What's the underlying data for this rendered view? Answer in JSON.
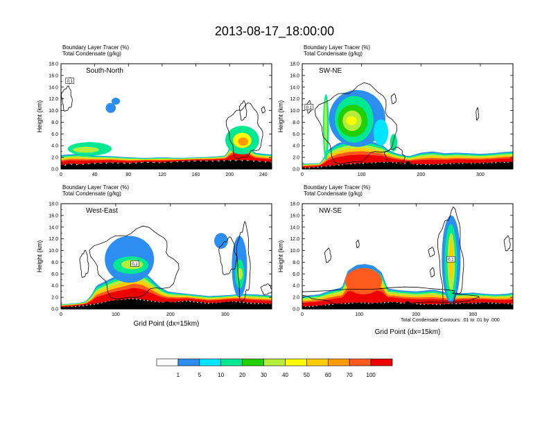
{
  "main_title": "2013-08-17_18:00:00",
  "colorbar": {
    "labels": [
      "1",
      "5",
      "10",
      "20",
      "30",
      "40",
      "50",
      "60",
      "70",
      "100"
    ],
    "colors": [
      "#ffffff",
      "#2b8ef0",
      "#00e5ff",
      "#00e892",
      "#22d000",
      "#b4ee3a",
      "#ffff00",
      "#ffcc00",
      "#ff9a00",
      "#ff5a1e",
      "#ee0000"
    ]
  },
  "footnote": "Total Condensate Contours: .01 to .01 by .000",
  "chart_data": [
    {
      "type": "heatmap",
      "panel_label": "South-North",
      "title_line1": "Boundary Layer Tracer    (%)",
      "title_line2": "Total Condensate    (g/kg)",
      "xlabel": "",
      "ylabel": "Height (km)",
      "xlim": [
        0,
        250
      ],
      "ylim": [
        0,
        18
      ],
      "xticks": [
        "0",
        "40",
        "80",
        "120",
        "160",
        "200",
        "240"
      ],
      "yticks": [
        "0.0",
        "2.0",
        "4.0",
        "6.0",
        "8.0",
        "10.0",
        "12.0",
        "14.0",
        "16.0",
        "18.0"
      ],
      "marker_x": 127,
      "box_label": "0.1",
      "ground": [
        [
          0,
          0.6
        ],
        [
          10,
          0.9
        ],
        [
          20,
          0.8
        ],
        [
          40,
          1.0
        ],
        [
          60,
          1.1
        ],
        [
          80,
          1.0
        ],
        [
          100,
          1.2
        ],
        [
          120,
          1.1
        ],
        [
          140,
          1.3
        ],
        [
          160,
          1.4
        ],
        [
          180,
          1.4
        ],
        [
          200,
          1.5
        ],
        [
          220,
          1.5
        ],
        [
          240,
          1.3
        ],
        [
          250,
          1.2
        ]
      ],
      "tracer_top": [
        [
          0,
          2.4
        ],
        [
          20,
          2.6
        ],
        [
          40,
          2.3
        ],
        [
          60,
          2.2
        ],
        [
          80,
          2.0
        ],
        [
          100,
          1.9
        ],
        [
          120,
          2.0
        ],
        [
          140,
          1.9
        ],
        [
          160,
          2.0
        ],
        [
          180,
          2.1
        ],
        [
          195,
          2.3
        ],
        [
          200,
          3.6
        ],
        [
          205,
          4.5
        ],
        [
          210,
          5.4
        ],
        [
          215,
          5.8
        ],
        [
          220,
          4.9
        ],
        [
          225,
          3.6
        ],
        [
          230,
          2.8
        ],
        [
          240,
          2.6
        ],
        [
          250,
          2.5
        ]
      ],
      "blobs": [
        {
          "x": [
            8,
            60
          ],
          "z": [
            2.3,
            4.6
          ],
          "level": 3
        },
        {
          "x": [
            14,
            45
          ],
          "z": [
            2.8,
            3.8
          ],
          "level": 5
        },
        {
          "x": [
            195,
            235
          ],
          "z": [
            2.5,
            7.4
          ],
          "level": 3
        },
        {
          "x": [
            204,
            226
          ],
          "z": [
            3.6,
            6.2
          ],
          "level": 6
        },
        {
          "x": [
            210,
            222
          ],
          "z": [
            4.0,
            5.4
          ],
          "level": 8
        },
        {
          "x": [
            53,
            65
          ],
          "z": [
            9.6,
            11.3
          ],
          "level": 1
        },
        {
          "x": [
            60,
            70
          ],
          "z": [
            11.0,
            12.2
          ],
          "level": 1
        }
      ],
      "contours": [
        {
          "x": [
            1,
            13
          ],
          "z": [
            10.0,
            14.0
          ]
        },
        {
          "x": [
            9,
            12
          ],
          "z": [
            14.6,
            15.6
          ]
        },
        {
          "x": [
            198,
            238
          ],
          "z": [
            2.0,
            10.8
          ]
        },
        {
          "x": [
            212,
            220
          ],
          "z": [
            8.4,
            11.5
          ]
        },
        {
          "x": [
            238,
            242
          ],
          "z": [
            9.6,
            10.6
          ]
        }
      ]
    },
    {
      "type": "heatmap",
      "panel_label": "SW-NE",
      "title_line1": "Boundary Layer Tracer    (%)",
      "title_line2": "Total Condensate    (g/kg)",
      "xlabel": "",
      "ylabel": "Height (km)",
      "xlim": [
        0,
        355
      ],
      "ylim": [
        0,
        18
      ],
      "xticks": [
        "0",
        "100",
        "200",
        "300"
      ],
      "yticks": [
        "0.0",
        "2.0",
        "4.0",
        "6.0",
        "8.0",
        "10.0",
        "12.0",
        "14.0",
        "16.0",
        "18.0"
      ],
      "marker_x": 178,
      "box_label": "0.1",
      "ground": [
        [
          0,
          0.2
        ],
        [
          20,
          0.3
        ],
        [
          40,
          0.5
        ],
        [
          60,
          0.7
        ],
        [
          80,
          0.9
        ],
        [
          100,
          1.0
        ],
        [
          120,
          1.1
        ],
        [
          140,
          1.2
        ],
        [
          160,
          1.1
        ],
        [
          180,
          0.9
        ],
        [
          200,
          0.8
        ],
        [
          220,
          0.8
        ],
        [
          240,
          0.9
        ],
        [
          260,
          1.0
        ],
        [
          280,
          1.0
        ],
        [
          300,
          1.0
        ],
        [
          320,
          1.1
        ],
        [
          340,
          1.2
        ],
        [
          355,
          1.2
        ]
      ],
      "tracer_top": [
        [
          0,
          0.9
        ],
        [
          30,
          1.0
        ],
        [
          38,
          2.2
        ],
        [
          45,
          3.4
        ],
        [
          60,
          4.4
        ],
        [
          80,
          5.0
        ],
        [
          100,
          5.1
        ],
        [
          120,
          4.6
        ],
        [
          135,
          4.1
        ],
        [
          145,
          3.3
        ],
        [
          155,
          2.8
        ],
        [
          165,
          2.5
        ],
        [
          180,
          2.2
        ],
        [
          200,
          2.8
        ],
        [
          220,
          3.0
        ],
        [
          240,
          2.7
        ],
        [
          260,
          2.8
        ],
        [
          280,
          2.7
        ],
        [
          300,
          2.6
        ],
        [
          320,
          2.7
        ],
        [
          340,
          2.9
        ],
        [
          355,
          3.0
        ]
      ],
      "blobs": [
        {
          "x": [
            35,
            45
          ],
          "z": [
            1.5,
            12.8
          ],
          "level": 3
        },
        {
          "x": [
            37,
            42
          ],
          "z": [
            3.0,
            12.0
          ],
          "level": 5
        },
        {
          "x": [
            45,
            140
          ],
          "z": [
            3.8,
            13.5
          ],
          "level": 1
        },
        {
          "x": [
            55,
            120
          ],
          "z": [
            4.5,
            12.5
          ],
          "level": 3
        },
        {
          "x": [
            60,
            110
          ],
          "z": [
            5.5,
            11.0
          ],
          "level": 4
        },
        {
          "x": [
            68,
            100
          ],
          "z": [
            6.5,
            10.0
          ],
          "level": 5
        },
        {
          "x": [
            74,
            92
          ],
          "z": [
            7.5,
            9.0
          ],
          "level": 6
        },
        {
          "x": [
            120,
            145
          ],
          "z": [
            4.0,
            8.5
          ],
          "level": 2
        },
        {
          "x": [
            148,
            160
          ],
          "z": [
            3.0,
            6.0
          ],
          "level": 3
        }
      ],
      "contours": [
        {
          "x": [
            28,
            155
          ],
          "z": [
            1.2,
            14.0
          ]
        },
        {
          "x": [
            8,
            15
          ],
          "z": [
            9.6,
            11.6
          ]
        },
        {
          "x": [
            150,
            158
          ],
          "z": [
            11.2,
            12.8
          ]
        },
        {
          "x": [
            293,
            297
          ],
          "z": [
            8.4,
            10.4
          ]
        },
        {
          "x": [
            140,
            172
          ],
          "z": [
            0.8,
            3.6
          ]
        }
      ]
    },
    {
      "type": "heatmap",
      "panel_label": "West-East",
      "title_line1": "Boundary Layer Tracer    (%)",
      "title_line2": "Total Condensate    (g/kg)",
      "xlabel": "Grid Point (dx=15km)",
      "ylabel": "Height (km)",
      "xlim": [
        0,
        385
      ],
      "ylim": [
        0,
        18
      ],
      "xticks": [
        "0",
        "100",
        "200",
        "300"
      ],
      "yticks": [
        "0.0",
        "2.0",
        "4.0",
        "6.0",
        "8.0",
        "10.0",
        "12.0",
        "14.0",
        "16.0",
        "18.0"
      ],
      "marker_x": 193,
      "box_label": "0.1",
      "ground": [
        [
          0,
          0.3
        ],
        [
          30,
          0.5
        ],
        [
          50,
          0.7
        ],
        [
          70,
          1.0
        ],
        [
          90,
          1.4
        ],
        [
          110,
          1.6
        ],
        [
          130,
          1.8
        ],
        [
          150,
          1.6
        ],
        [
          170,
          1.3
        ],
        [
          190,
          1.1
        ],
        [
          210,
          1.2
        ],
        [
          230,
          1.4
        ],
        [
          250,
          1.2
        ],
        [
          270,
          1.0
        ],
        [
          290,
          1.1
        ],
        [
          310,
          1.3
        ],
        [
          330,
          1.2
        ],
        [
          350,
          1.0
        ],
        [
          385,
          0.9
        ]
      ],
      "tracer_top": [
        [
          0,
          0.8
        ],
        [
          30,
          1.0
        ],
        [
          45,
          1.3
        ],
        [
          55,
          2.3
        ],
        [
          65,
          4.0
        ],
        [
          80,
          4.7
        ],
        [
          100,
          5.6
        ],
        [
          120,
          6.3
        ],
        [
          135,
          6.9
        ],
        [
          150,
          6.5
        ],
        [
          165,
          5.2
        ],
        [
          180,
          3.8
        ],
        [
          195,
          3.0
        ],
        [
          210,
          2.8
        ],
        [
          230,
          2.6
        ],
        [
          250,
          2.4
        ],
        [
          270,
          2.2
        ],
        [
          290,
          2.3
        ],
        [
          310,
          2.4
        ],
        [
          330,
          2.6
        ],
        [
          350,
          2.5
        ],
        [
          370,
          2.4
        ],
        [
          385,
          2.3
        ]
      ],
      "blobs": [
        {
          "x": [
            80,
            170
          ],
          "z": [
            4.5,
            12.5
          ],
          "level": 1
        },
        {
          "x": [
            95,
            160
          ],
          "z": [
            6.0,
            9.0
          ],
          "level": 3
        },
        {
          "x": [
            110,
            150
          ],
          "z": [
            6.8,
            8.4
          ],
          "level": 5
        },
        {
          "x": [
            280,
            305
          ],
          "z": [
            10.3,
            13.0
          ],
          "level": 1
        },
        {
          "x": [
            312,
            340
          ],
          "z": [
            2.0,
            12.5
          ],
          "level": 1
        },
        {
          "x": [
            318,
            335
          ],
          "z": [
            3.5,
            8.5
          ],
          "level": 3
        },
        {
          "x": [
            322,
            332
          ],
          "z": [
            5.0,
            7.0
          ],
          "level": 5
        }
      ],
      "contours": [
        {
          "x": [
            35,
            50
          ],
          "z": [
            5.5,
            9.8
          ]
        },
        {
          "x": [
            60,
            210
          ],
          "z": [
            2.0,
            13.5
          ]
        },
        {
          "x": [
            290,
            320
          ],
          "z": [
            6.0,
            12.0
          ]
        },
        {
          "x": [
            322,
            345
          ],
          "z": [
            1.5,
            14.2
          ]
        },
        {
          "x": [
            366,
            385
          ],
          "z": [
            2.5,
            4.2
          ]
        }
      ]
    },
    {
      "type": "heatmap",
      "panel_label": "NW-SE",
      "title_line1": "Boundary Layer Tracer    (%)",
      "title_line2": "Total Condensate    (g/kg)",
      "xlabel": "Grid Point (dx=15km)",
      "ylabel": "Height (km)",
      "xlim": [
        0,
        370
      ],
      "ylim": [
        0,
        18
      ],
      "xticks": [
        "0",
        "100",
        "200",
        "300"
      ],
      "yticks": [
        "0.0",
        "2.0",
        "4.0",
        "6.0",
        "8.0",
        "10.0",
        "12.0",
        "14.0",
        "16.0",
        "18.0"
      ],
      "marker_x": 185,
      "box_label": "0.1",
      "ground": [
        [
          0,
          0.4
        ],
        [
          20,
          0.5
        ],
        [
          40,
          0.7
        ],
        [
          60,
          0.9
        ],
        [
          80,
          1.0
        ],
        [
          100,
          1.1
        ],
        [
          120,
          1.0
        ],
        [
          140,
          1.1
        ],
        [
          160,
          1.2
        ],
        [
          180,
          1.0
        ],
        [
          200,
          0.9
        ],
        [
          220,
          0.8
        ],
        [
          240,
          0.8
        ],
        [
          260,
          0.9
        ],
        [
          280,
          1.0
        ],
        [
          300,
          1.0
        ],
        [
          320,
          1.1
        ],
        [
          340,
          1.0
        ],
        [
          370,
          0.9
        ]
      ],
      "tracer_top": [
        [
          0,
          2.2
        ],
        [
          30,
          2.5
        ],
        [
          50,
          3.2
        ],
        [
          70,
          3.7
        ],
        [
          80,
          6.5
        ],
        [
          95,
          7.5
        ],
        [
          110,
          7.7
        ],
        [
          125,
          7.4
        ],
        [
          140,
          6.2
        ],
        [
          150,
          3.5
        ],
        [
          170,
          3.2
        ],
        [
          200,
          3.0
        ],
        [
          230,
          3.3
        ],
        [
          245,
          3.0
        ],
        [
          260,
          2.6
        ],
        [
          280,
          2.7
        ],
        [
          300,
          2.8
        ],
        [
          320,
          2.6
        ],
        [
          340,
          2.5
        ],
        [
          360,
          2.6
        ],
        [
          370,
          2.8
        ]
      ],
      "blobs": [
        {
          "x": [
            75,
            140
          ],
          "z": [
            2.5,
            7.0
          ],
          "level": 9
        },
        {
          "x": [
            245,
            278
          ],
          "z": [
            1.0,
            16.0
          ],
          "level": 1
        },
        {
          "x": [
            250,
            272
          ],
          "z": [
            1.5,
            14.5
          ],
          "level": 3
        },
        {
          "x": [
            255,
            268
          ],
          "z": [
            3.0,
            13.0
          ],
          "level": 5
        },
        {
          "x": [
            258,
            265
          ],
          "z": [
            5.0,
            12.0
          ],
          "level": 7
        }
      ],
      "contours": [
        {
          "x": [
            0,
            300
          ],
          "z": [
            0.8,
            3.6
          ]
        },
        {
          "x": [
            240,
            282
          ],
          "z": [
            0.5,
            16.5
          ]
        },
        {
          "x": [
            40,
            50
          ],
          "z": [
            8.0,
            10.3
          ]
        },
        {
          "x": [
            95,
            100
          ],
          "z": [
            10.5,
            11.7
          ]
        },
        {
          "x": [
            222,
            232
          ],
          "z": [
            9.0,
            10.5
          ]
        },
        {
          "x": [
            355,
            365
          ],
          "z": [
            10.0,
            12.4
          ]
        },
        {
          "x": [
            225,
            232
          ],
          "z": [
            5.5,
            7.0
          ]
        }
      ]
    }
  ]
}
